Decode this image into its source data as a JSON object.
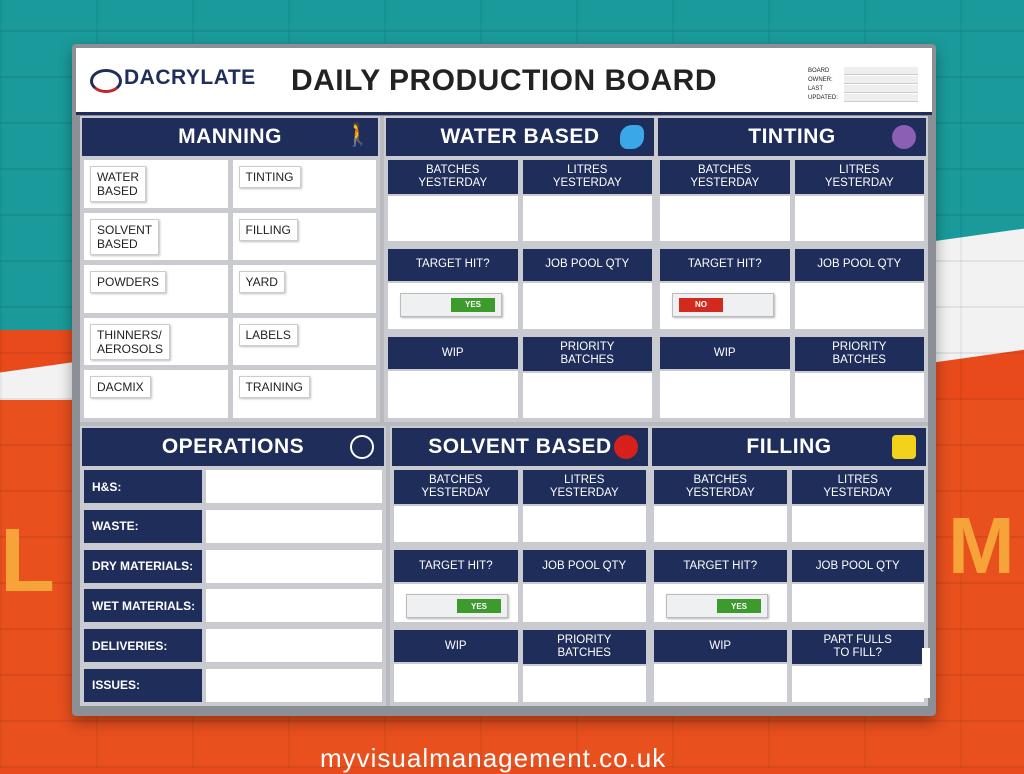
{
  "brand": {
    "logo_text": "DACRYLATE",
    "navy": "#1f2d5a"
  },
  "board": {
    "title": "DAILY PRODUCTION BOARD",
    "meta": [
      "BOARD",
      "OWNER:",
      "LAST",
      "UPDATED:"
    ]
  },
  "manning": {
    "title": "MANNING",
    "icon": "person-walking-icon",
    "cells": [
      "WATER\nBASED",
      "TINTING",
      "SOLVENT\nBASED",
      "FILLING",
      "POWDERS",
      "YARD",
      "THINNERS/\nAEROSOLS",
      "LABELS",
      "DACMIX",
      "TRAINING"
    ]
  },
  "operations": {
    "title": "OPERATIONS",
    "icon": "box-cycle-icon",
    "rows": [
      "H&S:",
      "WASTE:",
      "DRY MATERIALS:",
      "WET MATERIALS:",
      "DELIVERIES:",
      "ISSUES:"
    ]
  },
  "water_based": {
    "title": "WATER BASED",
    "icon": "paint-splash-icon",
    "labels": [
      "BATCHES\nYESTERDAY",
      "LITRES\nYESTERDAY",
      "TARGET HIT?",
      "JOB POOL QTY",
      "WIP",
      "PRIORITY\nBATCHES"
    ],
    "target": "YES"
  },
  "tinting": {
    "title": "TINTING",
    "icon": "palette-icon",
    "labels": [
      "BATCHES\nYESTERDAY",
      "LITRES\nYESTERDAY",
      "TARGET HIT?",
      "JOB POOL QTY",
      "WIP",
      "PRIORITY\nBATCHES"
    ],
    "target": "NO"
  },
  "solvent_based": {
    "title": "SOLVENT BASED",
    "icon": "red-dot-icon",
    "labels": [
      "BATCHES\nYESTERDAY",
      "LITRES\nYESTERDAY",
      "TARGET HIT?",
      "JOB POOL QTY",
      "WIP",
      "PRIORITY\nBATCHES"
    ],
    "target": "YES"
  },
  "filling": {
    "title": "FILLING",
    "icon": "paint-can-icon",
    "labels": [
      "BATCHES\nYESTERDAY",
      "LITRES\nYESTERDAY",
      "TARGET HIT?",
      "JOB POOL QTY",
      "WIP",
      "PART FULLS\nTO FILL?"
    ],
    "target": "YES"
  },
  "wall": {
    "url": "myvisualmanagement.co.uk"
  }
}
